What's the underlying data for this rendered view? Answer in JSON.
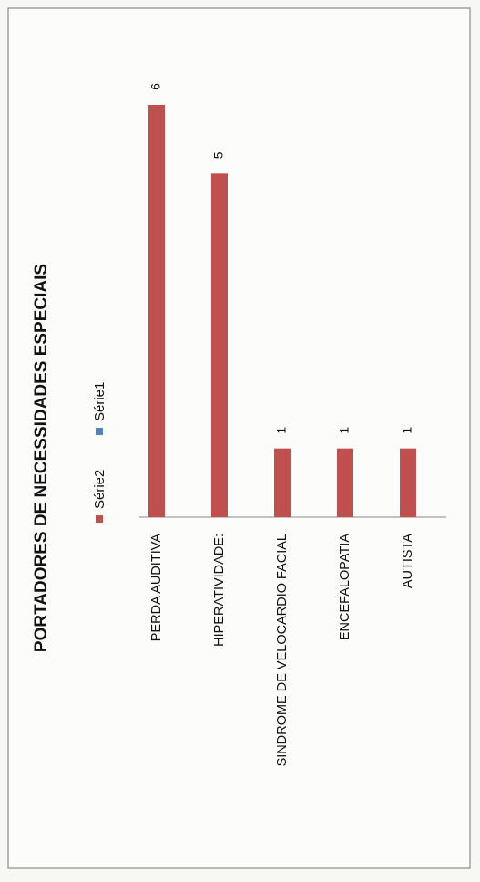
{
  "chart_data": {
    "type": "bar",
    "title": "PORTADORES DE NECESSIDADES ESPECIAIS",
    "categories": [
      "PERDA AUDITIVA",
      "HIPERATIVIDADE:",
      "SINDROME DE VELOCARDIO FACIAL",
      "ENCEFALOPATIA",
      "AUTISTA"
    ],
    "series": [
      {
        "name": "Série2",
        "color": "#c0504d",
        "values": [
          6,
          5,
          1,
          1,
          1
        ]
      },
      {
        "name": "Série1",
        "color": "#4f81bd",
        "values": [
          null,
          null,
          null,
          null,
          null
        ]
      }
    ],
    "ylim": [
      0,
      6
    ]
  }
}
